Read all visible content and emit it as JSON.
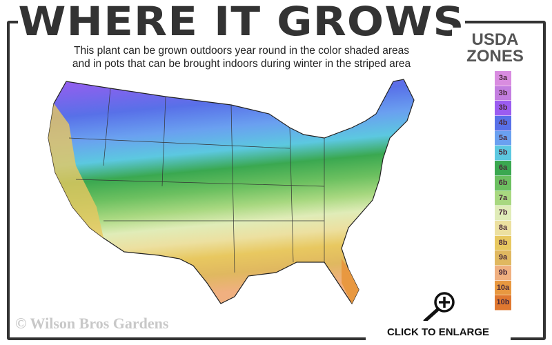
{
  "title": "WHERE IT GROWS",
  "subtitle_line1": "This plant can be grown outdoors year round in the color shaded areas",
  "subtitle_line2": "and in pots that can be brought indoors during winter in the striped area",
  "legend": {
    "title_line1": "USDA",
    "title_line2": "ZONES",
    "zones": [
      {
        "label": "3a",
        "color": "#d98ce0"
      },
      {
        "label": "3b",
        "color": "#c37ee0"
      },
      {
        "label": "3b",
        "color": "#9b5cf0"
      },
      {
        "label": "4b",
        "color": "#5870e8"
      },
      {
        "label": "5a",
        "color": "#6aa0f0"
      },
      {
        "label": "5b",
        "color": "#5cc8e0"
      },
      {
        "label": "6a",
        "color": "#3aa850"
      },
      {
        "label": "6b",
        "color": "#6cc060"
      },
      {
        "label": "7a",
        "color": "#a8d880"
      },
      {
        "label": "7b",
        "color": "#e0ecb8"
      },
      {
        "label": "8a",
        "color": "#ece0a0"
      },
      {
        "label": "8b",
        "color": "#e8c860"
      },
      {
        "label": "9a",
        "color": "#e0b860"
      },
      {
        "label": "9b",
        "color": "#f0b080"
      },
      {
        "label": "10a",
        "color": "#e89840"
      },
      {
        "label": "10b",
        "color": "#e07830"
      }
    ]
  },
  "copyright": "© Wilson Bros Gardens",
  "enlarge_label": "CLICK TO ENLARGE",
  "icons": {
    "enlarge": "magnifier-plus-icon"
  }
}
